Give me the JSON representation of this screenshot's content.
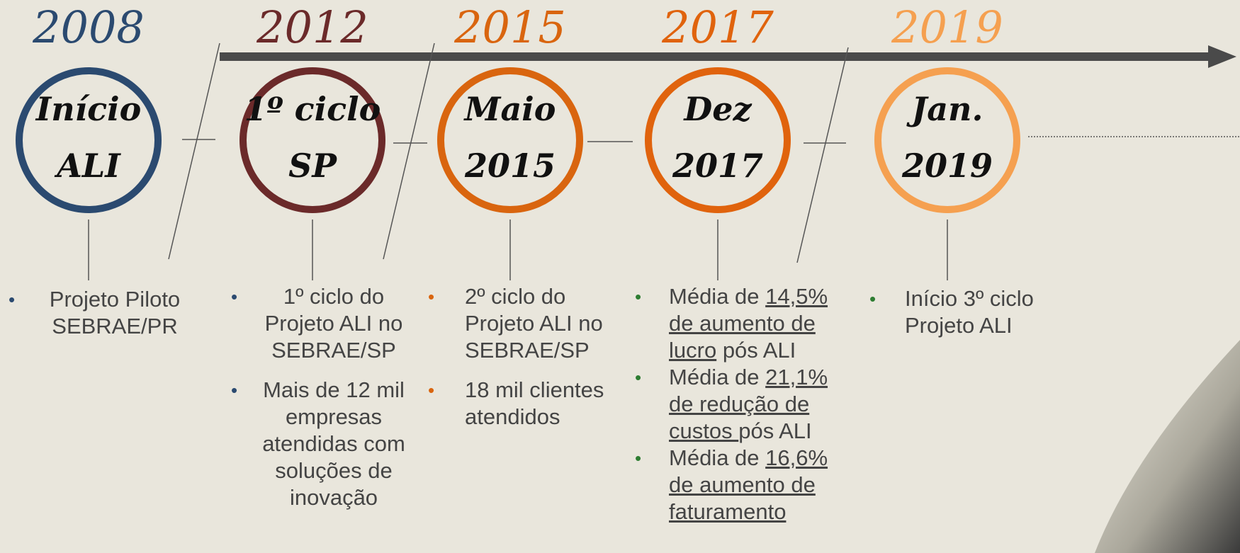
{
  "milestones": [
    {
      "year": "2008",
      "color": "#2b4a70",
      "bullet_color": "#2b4a70",
      "circle": [
        "Início",
        "ALI"
      ],
      "bullets": [
        [
          {
            "text": "Projeto Piloto SEBRAE/PR"
          }
        ]
      ]
    },
    {
      "year": "2012",
      "color": "#6b2a2a",
      "bullet_color": "#2b4a70",
      "circle": [
        "1º ciclo",
        "SP"
      ],
      "bullets": [
        [
          {
            "text": "1º ciclo do Projeto ALI no SEBRAE/SP"
          }
        ],
        [
          {
            "text": "Mais de 12 mil empresas atendidas com soluções de inovação"
          }
        ]
      ]
    },
    {
      "year": "2015",
      "color": "#d9650f",
      "bullet_color": "#d9650f",
      "circle": [
        "Maio",
        "2015"
      ],
      "bullets": [
        [
          {
            "text": "2º ciclo do Projeto ALI no SEBRAE/SP"
          }
        ],
        [
          {
            "text": "18 mil clientes atendidos"
          }
        ]
      ]
    },
    {
      "year": "2017",
      "color": "#e0630d",
      "bullet_color": "#2e7d32",
      "circle": [
        "Dez",
        "2017"
      ],
      "bullets": [
        [
          {
            "text": "Média de "
          },
          {
            "text": "14,5% de aumento de lucro",
            "underline": true
          },
          {
            "text": " pós ALI"
          }
        ],
        [
          {
            "text": "Média de "
          },
          {
            "text": "21,1% de redução de custos ",
            "underline": true
          },
          {
            "text": "pós ALI"
          }
        ],
        [
          {
            "text": "Média de "
          },
          {
            "text": "16,6% de aumento de faturamento",
            "underline": true
          }
        ]
      ]
    },
    {
      "year": "2019",
      "color": "#f5a050",
      "bullet_color": "#2e7d32",
      "circle": [
        "Jan.",
        "2019"
      ],
      "bullets": [
        [
          {
            "text": "Início 3º ciclo Projeto ALI"
          }
        ]
      ]
    }
  ]
}
